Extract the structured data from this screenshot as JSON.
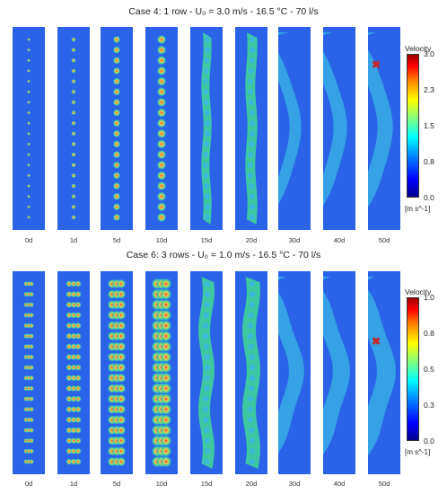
{
  "chart_data": [
    {
      "type": "heatmap",
      "title": "Case 4: 1 row - U₀ = 3.0 m/s - 16.5 °C -  70 l/s",
      "x": [
        "0d",
        "1d",
        "5d",
        "10d",
        "15d",
        "20d",
        "30d",
        "40d",
        "50d"
      ],
      "colorbar": {
        "title": "Velocity",
        "unit": "[m s^-1]",
        "ticks": [
          "3.0",
          "2.3",
          "1.5",
          "0.8",
          "0.0"
        ],
        "range": [
          0,
          3.0
        ]
      },
      "marker": {
        "panel": "50d",
        "symbol": "✖"
      }
    },
    {
      "type": "heatmap",
      "title": "Case 6: 3 rows - U₀ = 1.0 m/s - 16.5 °C -  70 l/s",
      "x": [
        "0d",
        "1d",
        "5d",
        "10d",
        "15d",
        "20d",
        "30d",
        "40d",
        "50d"
      ],
      "colorbar": {
        "title": "Velocity",
        "unit": "[m s^-1]",
        "ticks": [
          "1.0",
          "0.8",
          "0.5",
          "0.3",
          "0.0"
        ],
        "range": [
          0,
          1.0
        ]
      },
      "marker": {
        "panel": "50d",
        "symbol": "✖"
      }
    }
  ],
  "colors": {
    "background_field": "#2a63e8",
    "jet_core": "#f2c94c",
    "jet_mid": "#3fd39a",
    "wake": "#39b6e6",
    "marker": "#c62828"
  }
}
